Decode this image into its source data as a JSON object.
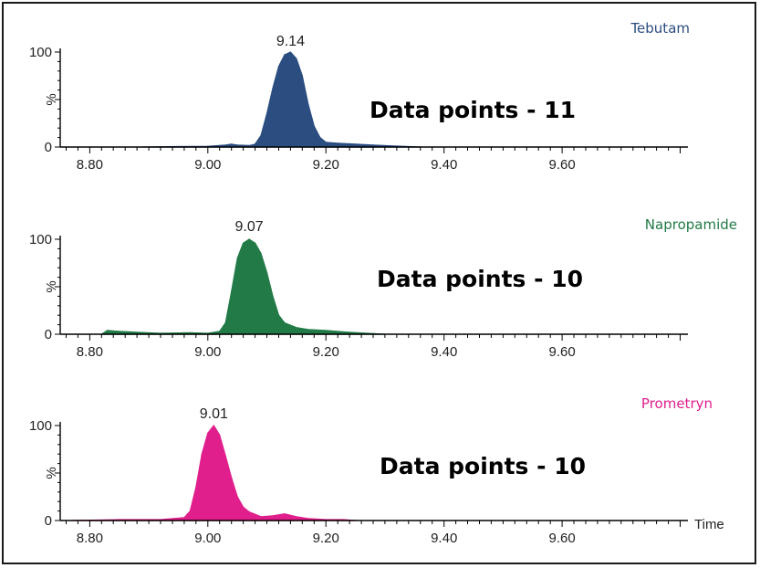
{
  "chart_data": [
    {
      "type": "area",
      "compound": "Tebutam",
      "color": "#2b4d80",
      "peak_label": "9.14",
      "annotation": "Data points - 11",
      "xlabel": "",
      "ylabel": "%",
      "xlim": [
        8.75,
        9.81
      ],
      "ylim": [
        0,
        100
      ],
      "x_tick_labels": [
        "8.80",
        "9.00",
        "9.20",
        "9.40",
        "9.60"
      ],
      "x_ticks": [
        8.8,
        9.0,
        9.2,
        9.4,
        9.6
      ],
      "y_tick_labels": [
        "100",
        "0"
      ],
      "x": [
        8.89,
        8.95,
        9.0,
        9.03,
        9.04,
        9.05,
        9.07,
        9.08,
        9.09,
        9.1,
        9.11,
        9.12,
        9.13,
        9.14,
        9.15,
        9.16,
        9.17,
        9.18,
        9.19,
        9.2,
        9.22,
        9.25,
        9.28,
        9.32,
        9.36
      ],
      "y": [
        0,
        0.5,
        0.8,
        2,
        3,
        2,
        1.5,
        3,
        12,
        35,
        62,
        85,
        97,
        100,
        93,
        75,
        45,
        22,
        10,
        5,
        4,
        3,
        2,
        1,
        0
      ]
    },
    {
      "type": "area",
      "compound": "Napropamide",
      "color": "#227a46",
      "peak_label": "9.07",
      "annotation": "Data points - 10",
      "xlabel": "",
      "ylabel": "%",
      "xlim": [
        8.75,
        9.81
      ],
      "ylim": [
        0,
        100
      ],
      "x_tick_labels": [
        "8.80",
        "9.00",
        "9.20",
        "9.40",
        "9.60"
      ],
      "x_ticks": [
        8.8,
        9.0,
        9.2,
        9.4,
        9.6
      ],
      "y_tick_labels": [
        "100",
        "0"
      ],
      "x": [
        8.82,
        8.83,
        8.85,
        8.88,
        8.92,
        8.97,
        9.0,
        9.02,
        9.03,
        9.04,
        9.05,
        9.06,
        9.07,
        9.08,
        9.09,
        9.1,
        9.11,
        9.12,
        9.13,
        9.15,
        9.17,
        9.2,
        9.24,
        9.27,
        9.3
      ],
      "y": [
        0,
        4,
        3,
        2,
        1,
        1.5,
        1,
        3,
        12,
        45,
        80,
        96,
        100,
        96,
        85,
        65,
        40,
        20,
        12,
        7,
        5,
        4,
        2,
        1,
        0
      ]
    },
    {
      "type": "area",
      "compound": "Prometryn",
      "color": "#e01e8c",
      "peak_label": "9.01",
      "annotation": "Data points - 10",
      "xlabel": "Time",
      "ylabel": "%",
      "xlim": [
        8.75,
        9.81
      ],
      "ylim": [
        0,
        100
      ],
      "x_tick_labels": [
        "8.80",
        "9.00",
        "9.20",
        "9.40",
        "9.60"
      ],
      "x_ticks": [
        8.8,
        9.0,
        9.2,
        9.4,
        9.6
      ],
      "y_tick_labels": [
        "100",
        "0"
      ],
      "x": [
        8.77,
        8.85,
        8.92,
        8.96,
        8.97,
        8.98,
        8.99,
        9.0,
        9.01,
        9.02,
        9.03,
        9.04,
        9.05,
        9.06,
        9.07,
        9.09,
        9.11,
        9.13,
        9.15,
        9.17,
        9.2,
        9.23,
        9.25
      ],
      "y": [
        0,
        1,
        1,
        3,
        10,
        35,
        70,
        92,
        100,
        90,
        68,
        45,
        25,
        14,
        9,
        4,
        5,
        7,
        4,
        2,
        1,
        1,
        0
      ]
    }
  ]
}
